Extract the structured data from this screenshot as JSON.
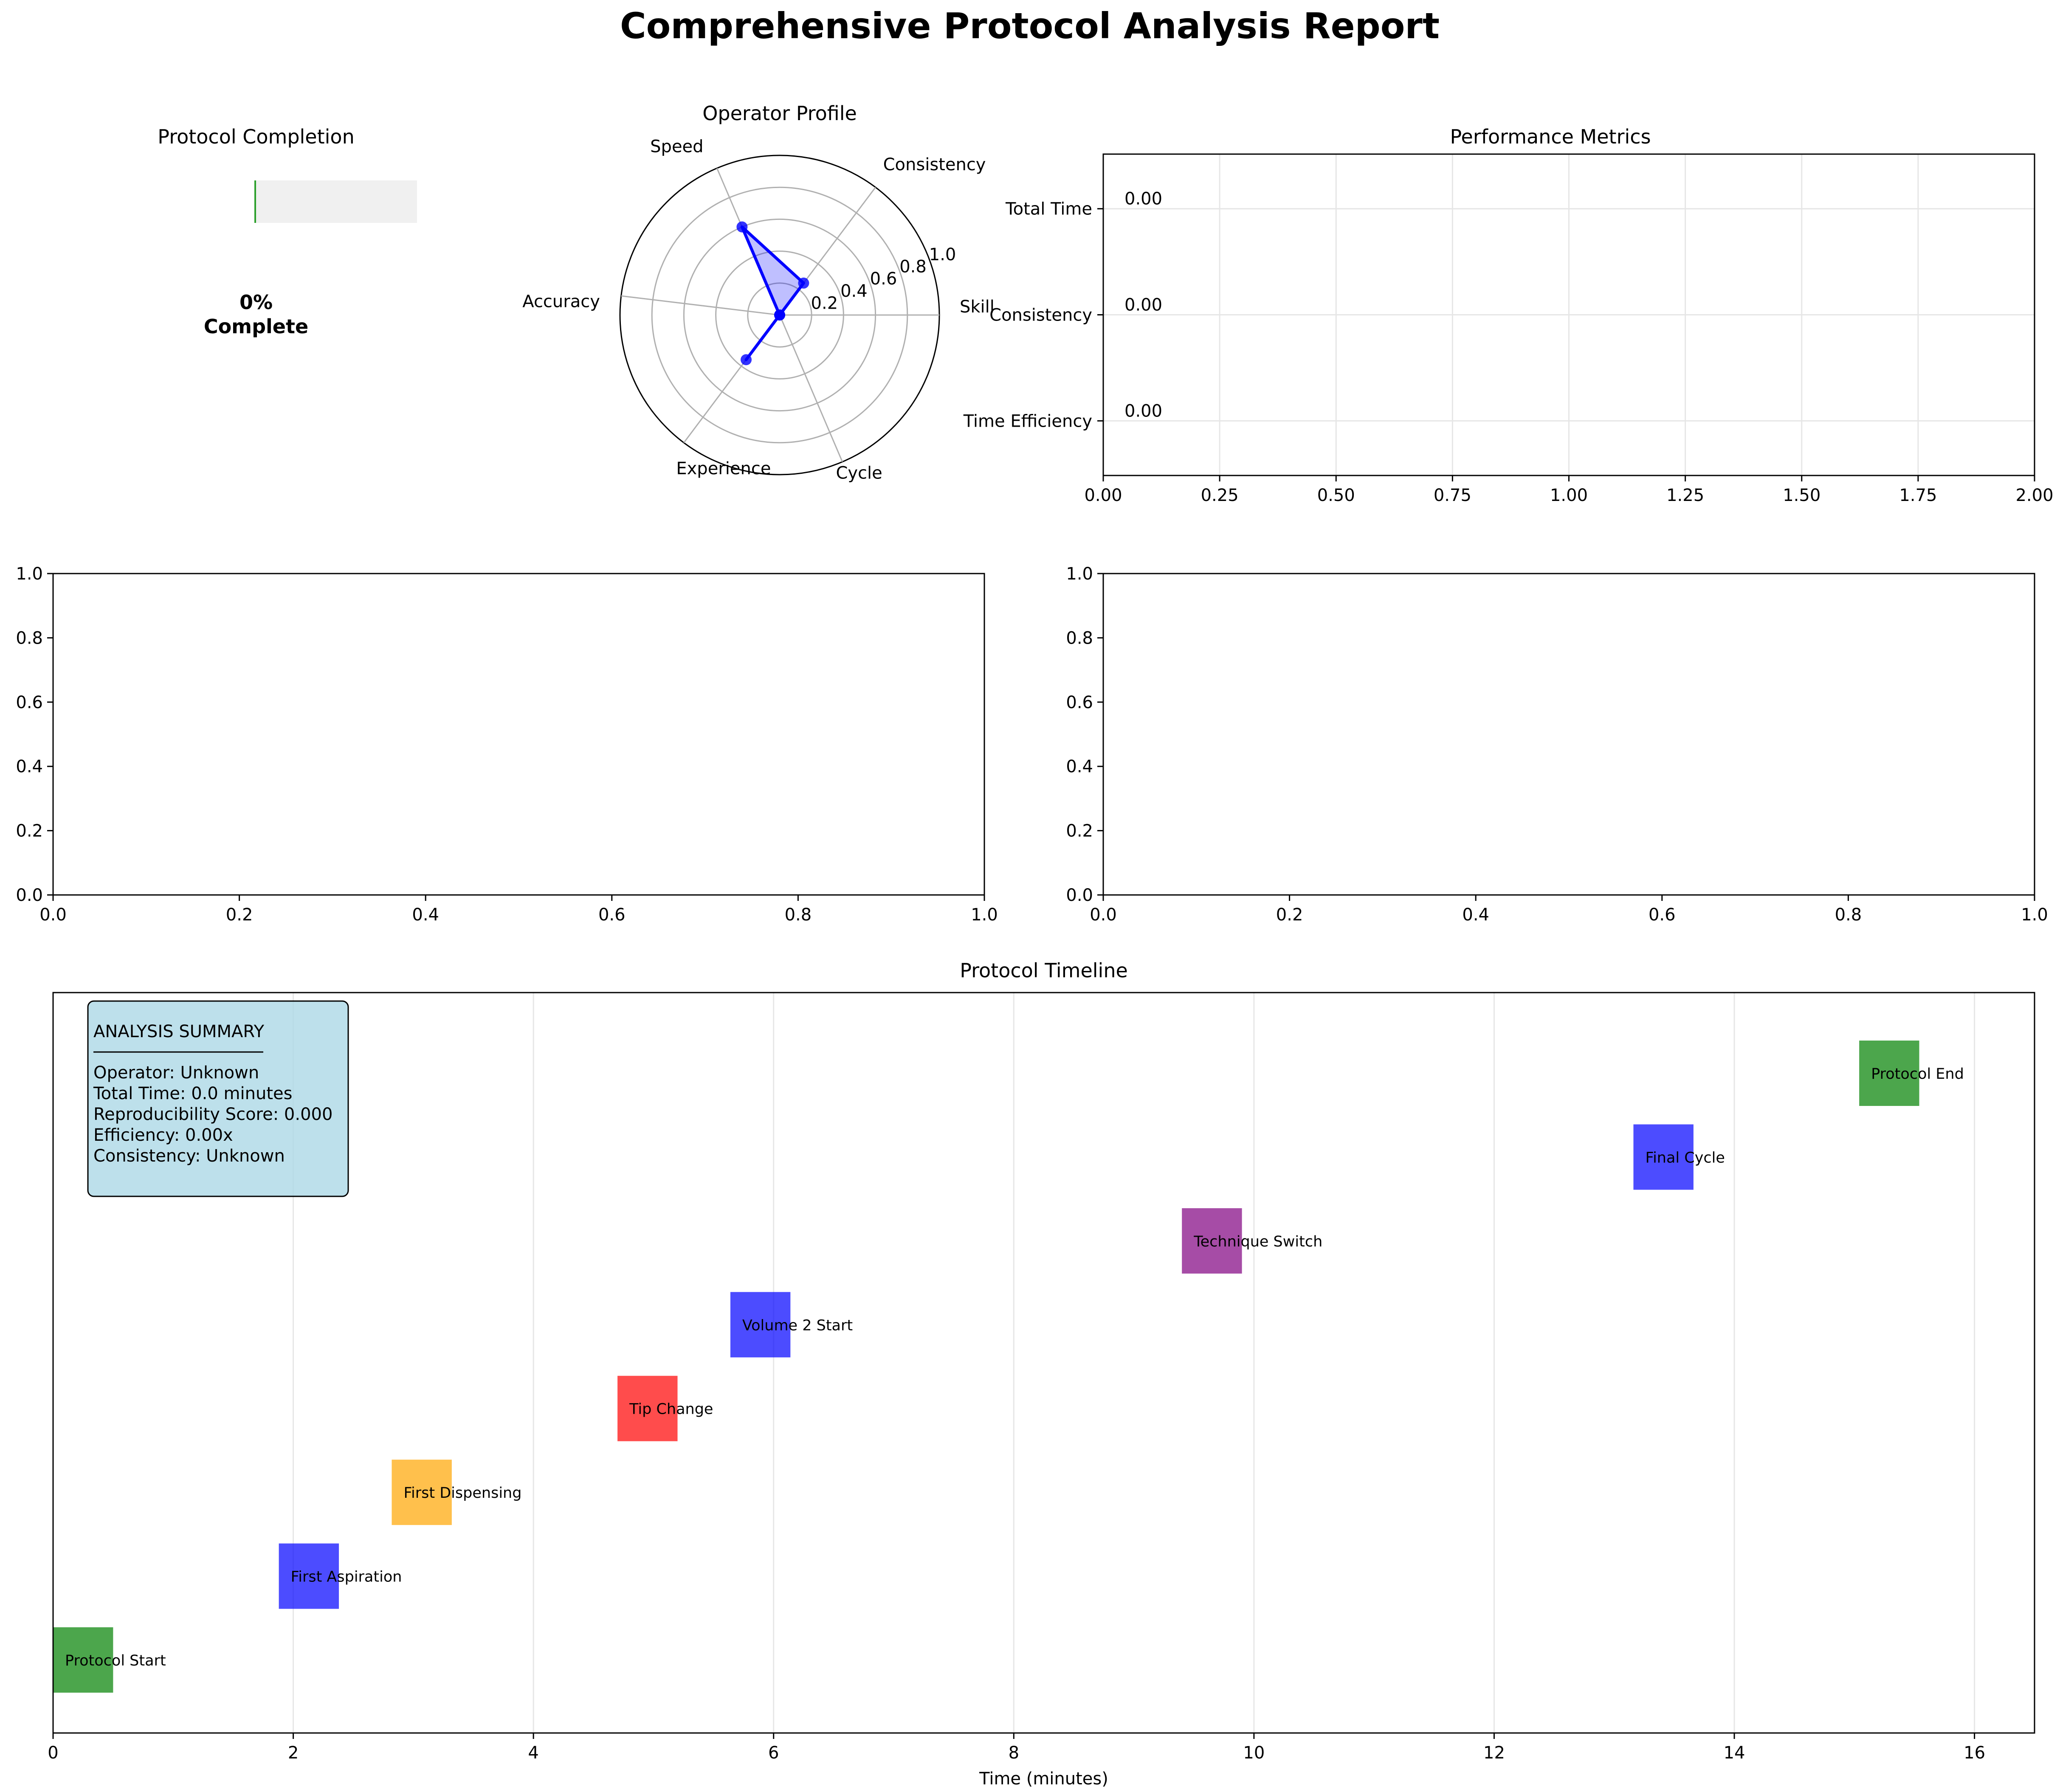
{
  "title": "Comprehensive Protocol Analysis Report",
  "chart_data": [
    {
      "id": "completion",
      "type": "bar",
      "title": "Protocol Completion",
      "value_percent": 0,
      "label_line1": "0%",
      "label_line2": "Complete",
      "fill_color": "#2ca02c",
      "track_color": "#f0f0f0"
    },
    {
      "id": "radar",
      "type": "radar",
      "title": "Operator Profile",
      "axes": [
        "Skill",
        "Consistency",
        "Speed",
        "Accuracy",
        "Experience",
        "Cycle"
      ],
      "values": [
        0.0,
        0.25,
        0.6,
        0.0,
        0.35,
        0.0
      ],
      "radial_ticks": [
        "0.2",
        "0.4",
        "0.6",
        "0.8",
        "1.0"
      ],
      "radial_max": 1.0,
      "color": "#0000ff"
    },
    {
      "id": "metrics",
      "type": "bar",
      "orientation": "horizontal",
      "title": "Performance Metrics",
      "categories": [
        "Time Efficiency",
        "Consistency",
        "Total Time"
      ],
      "values": [
        0.0,
        0.0,
        0.0
      ],
      "value_labels": [
        "0.00",
        "0.00",
        "0.00"
      ],
      "xlim": [
        0,
        2.0
      ],
      "xticks": [
        "0.00",
        "0.25",
        "0.50",
        "0.75",
        "1.00",
        "1.25",
        "1.50",
        "1.75",
        "2.00"
      ],
      "grid": true
    },
    {
      "id": "empty_left",
      "type": "line",
      "xlim": [
        0,
        1
      ],
      "ylim": [
        0,
        1
      ],
      "xticks": [
        "0.0",
        "0.2",
        "0.4",
        "0.6",
        "0.8",
        "1.0"
      ],
      "yticks": [
        "0.0",
        "0.2",
        "0.4",
        "0.6",
        "0.8",
        "1.0"
      ]
    },
    {
      "id": "empty_right",
      "type": "line",
      "xlim": [
        0,
        1
      ],
      "ylim": [
        0,
        1
      ],
      "xticks": [
        "0.0",
        "0.2",
        "0.4",
        "0.6",
        "0.8",
        "1.0"
      ],
      "yticks": [
        "0.0",
        "0.2",
        "0.4",
        "0.6",
        "0.8",
        "1.0"
      ]
    },
    {
      "id": "timeline",
      "type": "bar",
      "title": "Protocol Timeline",
      "xlabel": "Time (minutes)",
      "xlim": [
        0,
        16.5
      ],
      "xticks": [
        "0",
        "2",
        "4",
        "6",
        "8",
        "10",
        "12",
        "14",
        "16"
      ],
      "grid": true,
      "events": [
        {
          "label": "Protocol Start",
          "time": 0.0,
          "duration": 0.5,
          "color": "#008000"
        },
        {
          "label": "First Aspiration",
          "time": 1.88,
          "duration": 0.5,
          "color": "#0000ff"
        },
        {
          "label": "First Dispensing",
          "time": 2.82,
          "duration": 0.5,
          "color": "#ffa500"
        },
        {
          "label": "Tip Change",
          "time": 4.7,
          "duration": 0.5,
          "color": "#ff0000"
        },
        {
          "label": "Volume 2 Start",
          "time": 5.64,
          "duration": 0.5,
          "color": "#0000ff"
        },
        {
          "label": "Technique Switch",
          "time": 9.4,
          "duration": 0.5,
          "color": "#800080"
        },
        {
          "label": "Final Cycle",
          "time": 13.16,
          "duration": 0.5,
          "color": "#0000ff"
        },
        {
          "label": "Protocol End",
          "time": 15.04,
          "duration": 0.5,
          "color": "#008000"
        }
      ],
      "summary": {
        "heading": "ANALYSIS SUMMARY",
        "lines": [
          "Operator: Unknown",
          "Total Time: 0.0 minutes",
          "Reproducibility Score: 0.000",
          "Efficiency: 0.00x",
          "Consistency: Unknown"
        ],
        "box_color": "#add8e6"
      }
    }
  ]
}
